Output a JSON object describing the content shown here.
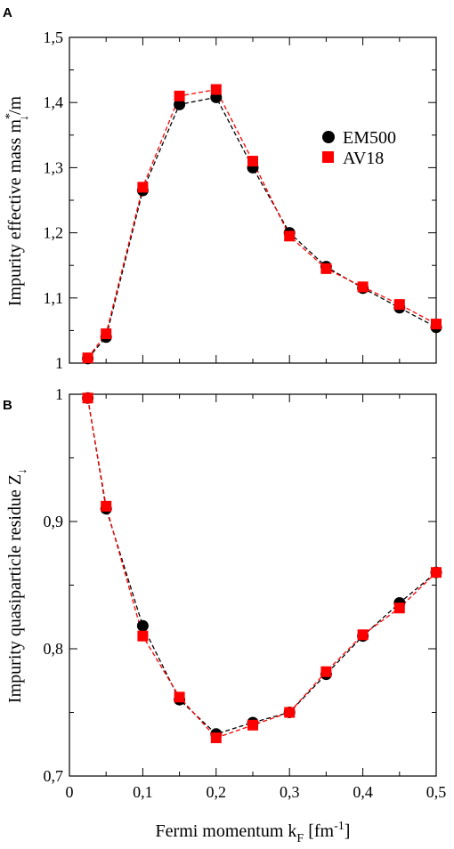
{
  "colors": {
    "em500": "#000000",
    "av18": "#ff0000"
  },
  "chart_data": [
    {
      "type": "line",
      "panel_label": "A",
      "ylabel_main": "Impurity effective mass m",
      "ylabel_sup": "*",
      "ylabel_sub": "↓",
      "ylabel_tail": "/m",
      "xlim": [
        0,
        0.5
      ],
      "ylim": [
        1.0,
        1.5
      ],
      "xticks": [
        0,
        0.1,
        0.2,
        0.3,
        0.4,
        0.5
      ],
      "xtick_labels": [],
      "yticks": [
        1.0,
        1.1,
        1.2,
        1.3,
        1.4,
        1.5
      ],
      "ytick_labels": [
        "1",
        "1,1",
        "1,2",
        "1,3",
        "1,4",
        "1,5"
      ],
      "legend_position": "right",
      "x": [
        0.025,
        0.05,
        0.1,
        0.15,
        0.2,
        0.25,
        0.3,
        0.35,
        0.4,
        0.45,
        0.5
      ],
      "series": [
        {
          "name": "EM500",
          "marker": "circle",
          "values": [
            1.007,
            1.04,
            1.265,
            1.397,
            1.408,
            1.3,
            1.2,
            1.148,
            1.115,
            1.085,
            1.055
          ]
        },
        {
          "name": "AV18",
          "marker": "square",
          "values": [
            1.008,
            1.045,
            1.27,
            1.41,
            1.42,
            1.31,
            1.195,
            1.145,
            1.117,
            1.09,
            1.06
          ]
        }
      ]
    },
    {
      "type": "line",
      "panel_label": "B",
      "ylabel_main": "Impurity quasiparticle residue Z",
      "ylabel_sub": "↓",
      "xlabel_main": "Fermi momentum k",
      "xlabel_sub": "F",
      "xlabel_unit": " [fm",
      "xlabel_sup": "-1",
      "xlabel_close": "]",
      "xlim": [
        0,
        0.5
      ],
      "ylim": [
        0.7,
        1.0
      ],
      "xticks": [
        0,
        0.1,
        0.2,
        0.3,
        0.4,
        0.5
      ],
      "xtick_labels": [
        "0",
        "0,1",
        "0,2",
        "0,3",
        "0,4",
        "0,5"
      ],
      "yticks": [
        0.7,
        0.8,
        0.9,
        1.0
      ],
      "ytick_labels": [
        "0,7",
        "0,8",
        "0,9",
        "1"
      ],
      "x": [
        0.025,
        0.05,
        0.1,
        0.15,
        0.2,
        0.25,
        0.3,
        0.35,
        0.4,
        0.45,
        0.5
      ],
      "series": [
        {
          "name": "EM500",
          "marker": "circle",
          "values": [
            0.997,
            0.91,
            0.818,
            0.76,
            0.733,
            0.742,
            0.75,
            0.78,
            0.81,
            0.836,
            0.86
          ]
        },
        {
          "name": "AV18",
          "marker": "square",
          "values": [
            0.997,
            0.912,
            0.81,
            0.762,
            0.73,
            0.74,
            0.75,
            0.782,
            0.811,
            0.832,
            0.86
          ]
        }
      ]
    }
  ]
}
